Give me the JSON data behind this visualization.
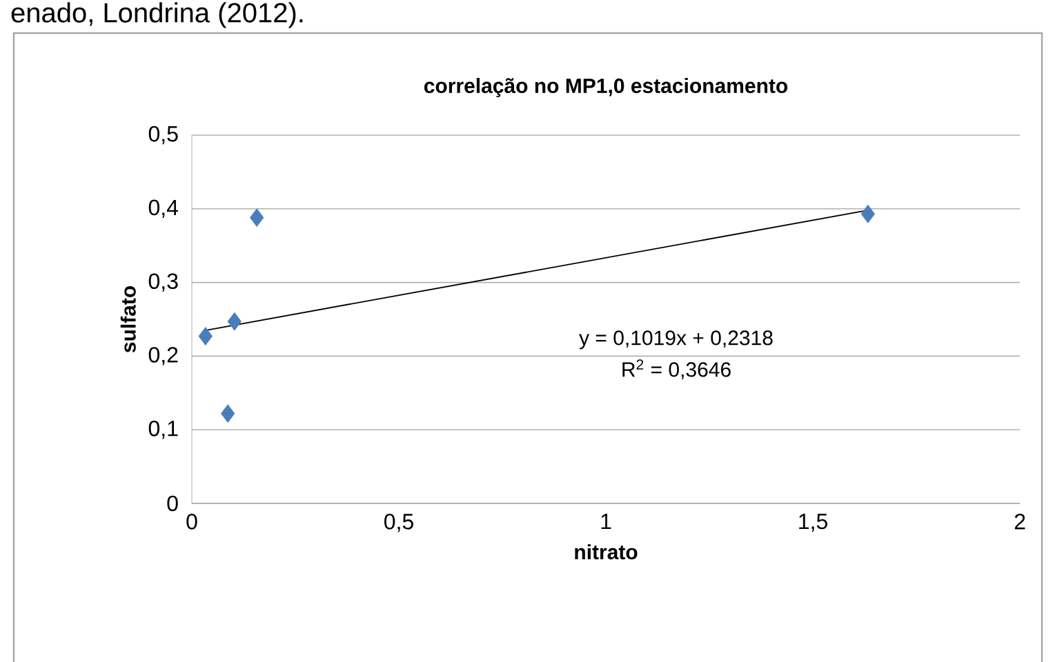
{
  "chart_data": {
    "type": "scatter",
    "title": "correlação no MP1,0 estacionamento",
    "xlabel": "nitrato",
    "ylabel": "sulfato",
    "annotations": [
      "enado, Londrina (2012).",
      "y = 0,1019x + 0,2318",
      "R$^{2}$ = 0,3646"
    ],
    "series": [
      {
        "type": "scatter",
        "color": "#4a7ebb",
        "x": [
          0.033,
          0.087,
          0.103,
          0.157,
          1.633
        ],
        "values": [
          0.227,
          0.122,
          0.247,
          0.388,
          0.393
        ]
      },
      {
        "type": "line",
        "marker": "none",
        "color": "#000000",
        "x": [
          0.033,
          1.633
        ],
        "values": [
          0.235,
          0.398
        ]
      }
    ],
    "marker": "diamond",
    "grid": "y",
    "xlim": [
      0,
      2
    ],
    "ylim": [
      0,
      0.5
    ],
    "xticks": [
      0,
      {
        "value": 0.5,
        "label": "0,5"
      },
      1,
      {
        "value": 1.5,
        "label": "1,5"
      },
      2
    ],
    "yticks": [
      0,
      {
        "value": 0.1,
        "label": "0,1"
      },
      {
        "value": 0.2,
        "label": "0,2"
      },
      {
        "value": 0.3,
        "label": "0,3"
      },
      {
        "value": 0.4,
        "label": "0,4"
      },
      {
        "value": 0.5,
        "label": "0,5"
      }
    ]
  }
}
